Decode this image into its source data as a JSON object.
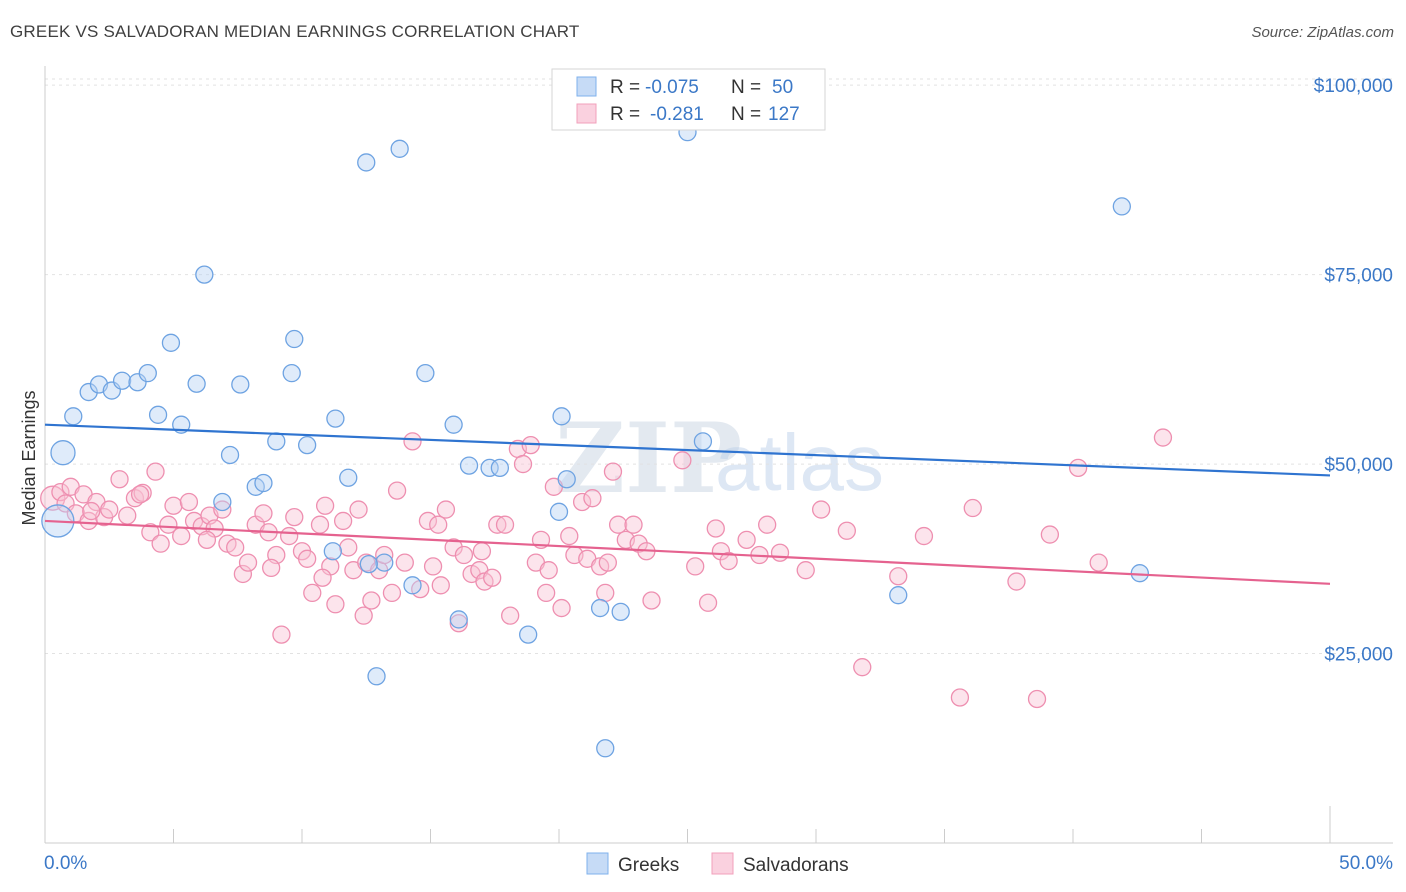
{
  "title": "GREEK VS SALVADORAN MEDIAN EARNINGS CORRELATION CHART",
  "source": "Source: ZipAtlas.com",
  "watermark": {
    "part1": "ZIP",
    "part2": "atlas"
  },
  "colors": {
    "greek": "#7fb2ec",
    "salvadoran": "#f2a0bb",
    "greek_line": "#2f74d0",
    "salvadoran_line": "#e5628f",
    "tick_text": "#3b78c7"
  },
  "legend": {
    "r_label": "R =",
    "n_label": "N =",
    "greek_r": "-0.075",
    "greek_n": "50",
    "salvadoran_r": "-0.281",
    "salvadoran_n": "127"
  },
  "chart_data": {
    "type": "scatter",
    "title": "GREEK VS SALVADORAN MEDIAN EARNINGS CORRELATION CHART",
    "xlabel": "",
    "ylabel": "Median Earnings",
    "xlim": [
      0,
      50
    ],
    "ylim": [
      0,
      102000
    ],
    "x_tick_labels": [
      "0.0%",
      "50.0%"
    ],
    "y_ticks": [
      25000,
      50000,
      75000,
      100000
    ],
    "y_tick_labels": [
      "$25,000",
      "$50,000",
      "$75,000",
      "$100,000"
    ],
    "legend_bottom": [
      "Greeks",
      "Salvadorans"
    ],
    "series": [
      {
        "name": "Greeks",
        "trend": {
          "x": [
            0,
            50
          ],
          "y": [
            55200,
            48500
          ]
        },
        "points": [
          [
            0.7,
            51.5,
            "L"
          ],
          [
            0.5,
            42.5,
            "XL"
          ],
          [
            1.1,
            56.3
          ],
          [
            1.7,
            59.5
          ],
          [
            2.1,
            60.5
          ],
          [
            2.6,
            59.7
          ],
          [
            3.0,
            61.0
          ],
          [
            3.6,
            60.8
          ],
          [
            4.0,
            62.0
          ],
          [
            4.4,
            56.5
          ],
          [
            4.9,
            66.0
          ],
          [
            5.3,
            55.2
          ],
          [
            5.9,
            60.6
          ],
          [
            6.2,
            75.0
          ],
          [
            6.9,
            45.0
          ],
          [
            7.2,
            51.2
          ],
          [
            7.6,
            60.5
          ],
          [
            8.2,
            47.0
          ],
          [
            8.5,
            47.5
          ],
          [
            9.0,
            53.0
          ],
          [
            9.6,
            62.0
          ],
          [
            9.7,
            66.5
          ],
          [
            10.2,
            52.5
          ],
          [
            11.3,
            56.0
          ],
          [
            11.8,
            48.2
          ],
          [
            11.2,
            38.5
          ],
          [
            12.5,
            89.8
          ],
          [
            12.9,
            22.0
          ],
          [
            13.2,
            37.0
          ],
          [
            13.8,
            91.6
          ],
          [
            14.3,
            34.0
          ],
          [
            14.8,
            62.0
          ],
          [
            15.9,
            55.2
          ],
          [
            16.1,
            29.5
          ],
          [
            16.5,
            49.8
          ],
          [
            17.3,
            49.5
          ],
          [
            18.8,
            27.5
          ],
          [
            20.1,
            56.3
          ],
          [
            20.3,
            48.0
          ],
          [
            20.0,
            43.7
          ],
          [
            21.6,
            31.0
          ],
          [
            21.8,
            12.5
          ],
          [
            22.4,
            30.5
          ],
          [
            25.0,
            93.8
          ],
          [
            25.6,
            53.0
          ],
          [
            33.2,
            32.7
          ],
          [
            41.9,
            84.0
          ],
          [
            42.6,
            35.6
          ],
          [
            12.6,
            36.8
          ],
          [
            17.7,
            49.5
          ]
        ]
      },
      {
        "name": "Salvadorans",
        "trend": {
          "x": [
            0,
            50
          ],
          "y": [
            42500,
            34200
          ]
        },
        "points": [
          [
            0.3,
            45.5,
            "L"
          ],
          [
            0.6,
            46.3
          ],
          [
            0.8,
            44.8
          ],
          [
            1.0,
            47.0
          ],
          [
            1.2,
            43.5
          ],
          [
            1.5,
            46.0
          ],
          [
            1.7,
            42.5
          ],
          [
            2.0,
            45.0
          ],
          [
            2.3,
            43.0
          ],
          [
            2.5,
            44.0
          ],
          [
            2.9,
            48.0
          ],
          [
            3.2,
            43.2
          ],
          [
            3.5,
            45.5
          ],
          [
            3.8,
            46.2
          ],
          [
            4.1,
            41.0
          ],
          [
            4.3,
            49.0
          ],
          [
            4.5,
            39.5
          ],
          [
            4.8,
            42.0
          ],
          [
            5.0,
            44.5
          ],
          [
            5.3,
            40.5
          ],
          [
            5.6,
            45.0
          ],
          [
            5.8,
            42.5
          ],
          [
            6.1,
            41.8
          ],
          [
            6.4,
            43.2
          ],
          [
            6.6,
            41.5
          ],
          [
            6.9,
            44.0
          ],
          [
            7.1,
            39.5
          ],
          [
            7.4,
            39.0
          ],
          [
            7.7,
            35.5
          ],
          [
            7.9,
            37.0
          ],
          [
            8.2,
            42.0
          ],
          [
            8.5,
            43.5
          ],
          [
            8.7,
            41.0
          ],
          [
            9.0,
            38.0
          ],
          [
            9.2,
            27.5
          ],
          [
            9.5,
            40.5
          ],
          [
            9.7,
            43.0
          ],
          [
            10.0,
            38.5
          ],
          [
            10.2,
            37.5
          ],
          [
            10.4,
            33.0
          ],
          [
            10.7,
            42.0
          ],
          [
            10.9,
            44.5
          ],
          [
            11.1,
            36.5
          ],
          [
            11.3,
            31.5
          ],
          [
            11.6,
            42.5
          ],
          [
            11.8,
            39.0
          ],
          [
            12.0,
            36.0
          ],
          [
            12.2,
            44.0
          ],
          [
            12.5,
            37.0
          ],
          [
            12.7,
            32.0
          ],
          [
            13.0,
            36.0
          ],
          [
            13.2,
            38.0
          ],
          [
            13.5,
            33.0
          ],
          [
            13.7,
            46.5
          ],
          [
            14.0,
            37.0
          ],
          [
            14.3,
            53.0
          ],
          [
            14.6,
            33.5
          ],
          [
            14.9,
            42.5
          ],
          [
            15.1,
            36.5
          ],
          [
            15.4,
            34.0
          ],
          [
            15.6,
            44.0
          ],
          [
            15.9,
            39.0
          ],
          [
            16.1,
            29.0
          ],
          [
            16.3,
            38.0
          ],
          [
            16.6,
            35.5
          ],
          [
            16.9,
            36.0
          ],
          [
            17.1,
            34.5
          ],
          [
            17.4,
            35.0
          ],
          [
            17.6,
            42.0
          ],
          [
            17.9,
            42.0
          ],
          [
            18.1,
            30.0
          ],
          [
            18.4,
            52.0
          ],
          [
            18.6,
            50.0
          ],
          [
            18.9,
            52.5
          ],
          [
            19.1,
            37.0
          ],
          [
            19.3,
            40.0
          ],
          [
            19.6,
            36.0
          ],
          [
            19.8,
            47.0
          ],
          [
            20.1,
            31.0
          ],
          [
            20.4,
            40.5
          ],
          [
            20.6,
            38.0
          ],
          [
            20.9,
            45.0
          ],
          [
            21.1,
            37.5
          ],
          [
            21.3,
            45.5
          ],
          [
            21.6,
            36.5
          ],
          [
            21.8,
            33.0
          ],
          [
            22.1,
            49.0
          ],
          [
            22.3,
            42.0
          ],
          [
            22.6,
            40.0
          ],
          [
            22.9,
            42.0
          ],
          [
            23.1,
            39.5
          ],
          [
            23.4,
            38.5
          ],
          [
            24.8,
            50.5
          ],
          [
            25.3,
            36.5
          ],
          [
            25.8,
            31.7
          ],
          [
            26.1,
            41.5
          ],
          [
            26.3,
            38.5
          ],
          [
            26.6,
            37.2
          ],
          [
            27.3,
            40.0
          ],
          [
            27.8,
            38.0
          ],
          [
            28.1,
            42.0
          ],
          [
            28.6,
            38.3
          ],
          [
            29.6,
            36.0
          ],
          [
            30.2,
            44.0
          ],
          [
            31.2,
            41.2
          ],
          [
            31.8,
            23.2
          ],
          [
            33.2,
            35.2
          ],
          [
            34.2,
            40.5
          ],
          [
            35.6,
            19.2
          ],
          [
            36.1,
            44.2
          ],
          [
            37.8,
            34.5
          ],
          [
            38.6,
            19.0
          ],
          [
            39.1,
            40.7
          ],
          [
            40.2,
            49.5
          ],
          [
            41.0,
            37.0
          ],
          [
            43.5,
            53.5
          ],
          [
            1.8,
            43.8
          ],
          [
            3.7,
            46.0
          ],
          [
            6.3,
            40.0
          ],
          [
            8.8,
            36.3
          ],
          [
            10.8,
            35.0
          ],
          [
            12.4,
            30.0
          ],
          [
            15.3,
            42.0
          ],
          [
            17.0,
            38.5
          ],
          [
            19.5,
            33.0
          ],
          [
            21.9,
            37.0
          ],
          [
            23.6,
            32.0
          ]
        ]
      }
    ]
  }
}
